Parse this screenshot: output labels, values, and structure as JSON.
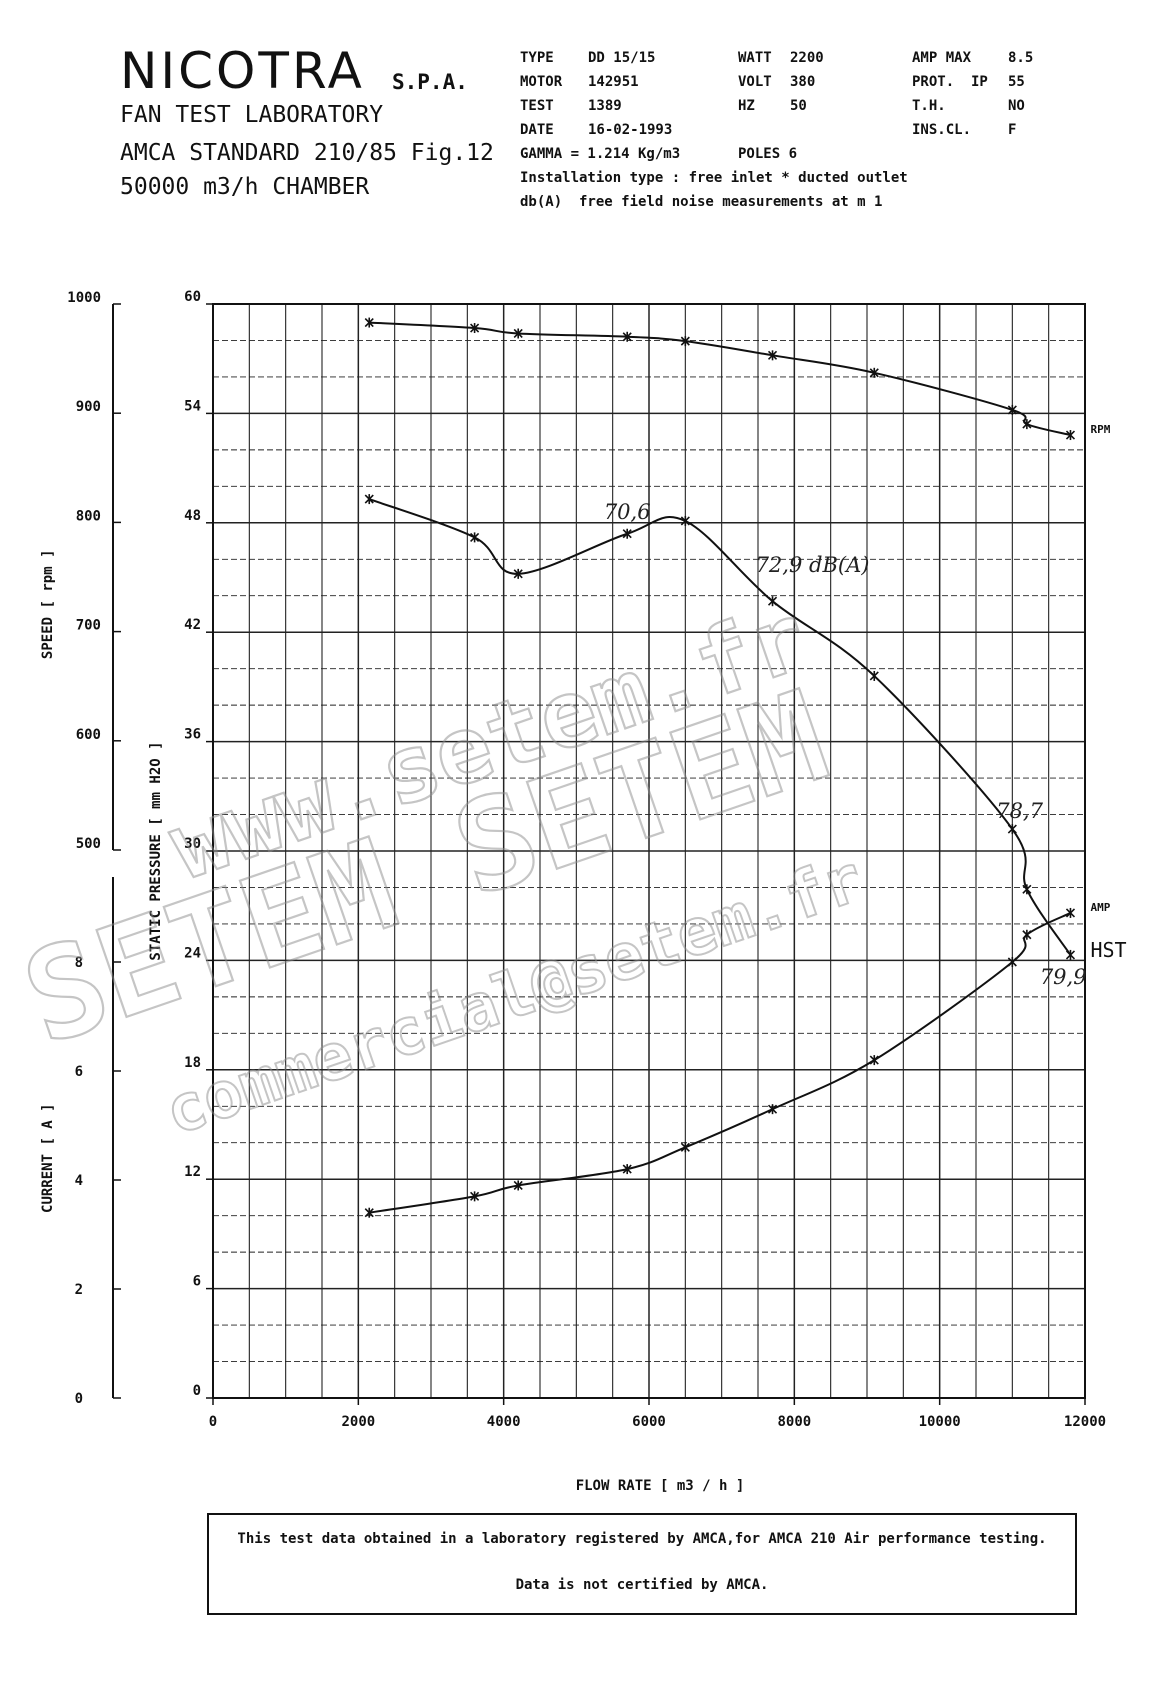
{
  "header": {
    "brand": "NICOTRA",
    "brand_suffix": "S.P.A.",
    "lab": "FAN TEST LABORATORY",
    "standard": "AMCA STANDARD 210/85  Fig.12",
    "chamber": "50000 m3/h  CHAMBER"
  },
  "specs": {
    "type_label": "TYPE",
    "type_value": "DD 15/15",
    "motor_label": "MOTOR",
    "motor_value": "142951",
    "test_label": "TEST",
    "test_value": "1389",
    "date_label": "DATE",
    "date_value": "16-02-1993",
    "gamma": "GAMMA = 1.214 Kg/m3",
    "watt_label": "WATT",
    "watt_value": "2200",
    "volt_label": "VOLT",
    "volt_value": "380",
    "hz_label": "HZ",
    "hz_value": "50",
    "poles": "POLES 6",
    "ampmax_label": "AMP MAX",
    "ampmax_value": "8.5",
    "prot_label": "PROT.  IP",
    "prot_value": "55",
    "th_label": "T.H.",
    "th_value": "NO",
    "inscl_label": "INS.CL.",
    "inscl_value": "F",
    "installation": "Installation type : free inlet * ducted outlet",
    "noise": "db(A)  free field noise measurements at m 1"
  },
  "watermark": {
    "line1": "www.setem.fr",
    "line2": "SETEM   SETEM",
    "line3": "commercial@setem.fr"
  },
  "note": {
    "line1": "This test data obtained in a laboratory registered by AMCA,for  AMCA 210 Air performance testing.",
    "line2": "Data is not certified by AMCA."
  },
  "chart_data": {
    "type": "line",
    "xlabel": "FLOW RATE [ m3 / h ]",
    "xlim": [
      0,
      12000
    ],
    "x_ticks": [
      "0",
      "2000",
      "4000",
      "6000",
      "8000",
      "10000",
      "12000"
    ],
    "pressure_axis": {
      "label": "STATIC PRESSURE  [ mm H2O ]",
      "ylim": [
        0,
        60
      ],
      "ticks": [
        "0",
        "6",
        "12",
        "18",
        "24",
        "30",
        "36",
        "42",
        "48",
        "54",
        "60"
      ]
    },
    "speed_axis": {
      "label": "SPEED  [ rpm ]",
      "ylim": [
        500,
        1000
      ],
      "ticks": [
        "500",
        "600",
        "700",
        "800",
        "900",
        "1000"
      ]
    },
    "current_axis": {
      "label": "CURRENT  [ A ]",
      "ylim": [
        0,
        10
      ],
      "ticks": [
        "0",
        "2",
        "4",
        "6",
        "8"
      ]
    },
    "series": [
      {
        "name": "RPM",
        "axis": "speed",
        "x": [
          2150,
          3600,
          4200,
          5700,
          6500,
          7700,
          9100,
          11000,
          11200,
          11800
        ],
        "y": [
          983,
          978,
          973,
          970,
          966,
          953,
          937,
          903,
          890,
          880
        ]
      },
      {
        "name": "HST",
        "axis": "pressure",
        "x": [
          2150,
          3600,
          4200,
          5700,
          6500,
          7700,
          9100,
          11000,
          11200,
          11800
        ],
        "y": [
          49.3,
          47.2,
          45.2,
          47.4,
          48.1,
          43.7,
          39.6,
          31.2,
          27.9,
          24.3
        ]
      },
      {
        "name": "AMP",
        "axis": "current",
        "x": [
          2150,
          3600,
          4200,
          5700,
          6500,
          7700,
          9100,
          11000,
          11200,
          11800
        ],
        "y": [
          3.4,
          3.7,
          3.9,
          4.2,
          4.6,
          5.3,
          6.2,
          8.0,
          8.5,
          8.9
        ]
      }
    ],
    "series_labels": {
      "rpm": "RPM",
      "amp": "AMP",
      "hst": "HST"
    },
    "annotations": [
      {
        "text": "70,6",
        "x": 5700,
        "y": 48.2
      },
      {
        "text": "72,9  dB(A)",
        "x": 8250,
        "y": 45.3
      },
      {
        "text": "78,7",
        "x": 11100,
        "y": 31.8
      },
      {
        "text": "79,9",
        "x": 11700,
        "y": 22.7
      }
    ],
    "grid": true
  }
}
